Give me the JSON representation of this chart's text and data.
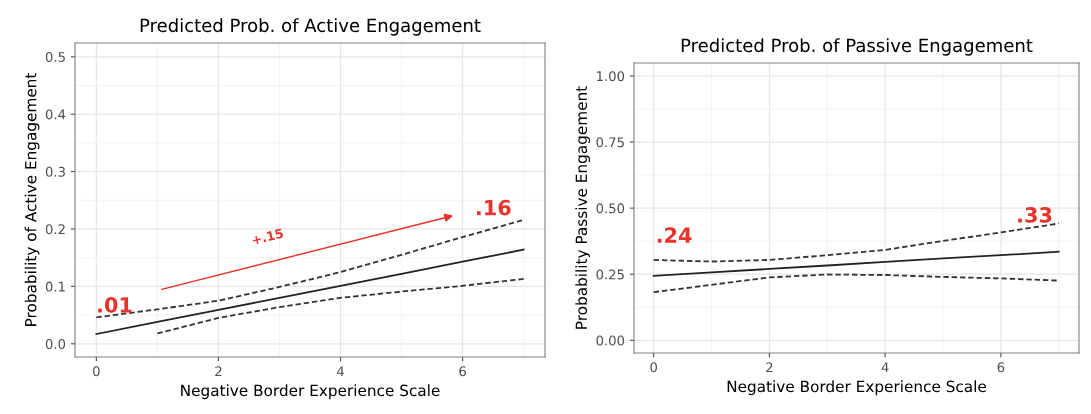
{
  "chart_data": [
    {
      "type": "line",
      "title": "Predicted Prob. of Active Engagement",
      "xlabel": "Negative Border Experience Scale",
      "ylabel": "Probability of Active Engagement",
      "xlim": [
        -0.35,
        7.35
      ],
      "ylim": [
        -0.023,
        0.524
      ],
      "xticks": [
        0,
        2,
        4,
        6
      ],
      "yticks": [
        {
          "value": 0,
          "label": "0.0"
        },
        0.1,
        0.2,
        0.3,
        0.4,
        0.5
      ],
      "grid": true,
      "series": [
        {
          "x": [
            0,
            1,
            2,
            3,
            4,
            5,
            6,
            7
          ],
          "values": [
            0.017,
            0.038,
            0.059,
            0.08,
            0.101,
            0.122,
            0.143,
            0.164
          ],
          "color": "#222222",
          "line_style": "solid"
        },
        {
          "x": [
            0,
            1,
            2,
            3,
            4,
            5,
            6,
            7
          ],
          "values": [
            0.046,
            0.06,
            0.075,
            0.099,
            0.125,
            0.155,
            0.186,
            0.216
          ],
          "color": "#333333",
          "line_style": "dashed"
        },
        {
          "x": [
            1,
            2,
            3,
            4,
            5,
            6,
            7
          ],
          "values": [
            0.018,
            0.045,
            0.064,
            0.08,
            0.091,
            0.101,
            0.113
          ],
          "color": "#333333",
          "line_style": "dashed"
        }
      ],
      "annotations": [
        ".01",
        ".16",
        "+.15"
      ]
    },
    {
      "type": "line",
      "title": "Predicted Prob. of Passive Engagement",
      "xlabel": "Negative Border Experience Scale",
      "ylabel": "Probability Passive Engagement",
      "xlim": [
        -0.34,
        7.35
      ],
      "ylim": [
        -0.048,
        1.049
      ],
      "xticks": [
        0,
        2,
        4,
        6
      ],
      "yticks": [
        {
          "value": 0,
          "label": "0.00"
        },
        0.25,
        {
          "value": 0.5,
          "label": "0.50"
        },
        0.75,
        {
          "value": 1,
          "label": "1.00"
        }
      ],
      "grid": true,
      "series": [
        {
          "x": [
            0,
            1,
            2,
            3,
            4,
            5,
            6,
            7
          ],
          "values": [
            0.244,
            0.257,
            0.27,
            0.283,
            0.297,
            0.31,
            0.322,
            0.335
          ],
          "color": "#222222",
          "line_style": "solid"
        },
        {
          "x": [
            0,
            1,
            2,
            3,
            4,
            5,
            6,
            7
          ],
          "values": [
            0.304,
            0.298,
            0.304,
            0.322,
            0.342,
            0.376,
            0.408,
            0.442
          ],
          "color": "#333333",
          "line_style": "dashed"
        },
        {
          "x": [
            0,
            1,
            2,
            3,
            4,
            5,
            6,
            7
          ],
          "values": [
            0.182,
            0.21,
            0.238,
            0.249,
            0.247,
            0.24,
            0.234,
            0.226
          ],
          "color": "#333333",
          "line_style": "dashed"
        }
      ],
      "annotations": [
        ".24",
        ".33"
      ]
    }
  ]
}
